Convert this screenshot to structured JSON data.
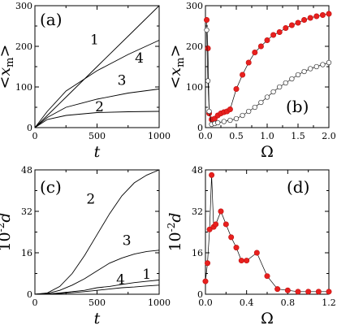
{
  "chart_data": [
    {
      "id": "a",
      "type": "line",
      "panel_label": "(a)",
      "xlabel": "t",
      "ylabel_html": "<x_m>",
      "xlim": [
        0,
        1000
      ],
      "ylim": [
        0,
        300
      ],
      "xticks": [
        0,
        500,
        1000
      ],
      "yticks": [
        0,
        100,
        200,
        300
      ],
      "series": [
        {
          "name": "1",
          "x": [
            0,
            100,
            250,
            500,
            750,
            1000
          ],
          "y": [
            0,
            30,
            75,
            150,
            225,
            300
          ],
          "label_at": [
            480,
            205
          ]
        },
        {
          "name": "4",
          "x": [
            0,
            100,
            250,
            500,
            750,
            1000
          ],
          "y": [
            0,
            40,
            90,
            140,
            180,
            215
          ],
          "label_at": [
            840,
            160
          ]
        },
        {
          "name": "3",
          "x": [
            0,
            100,
            250,
            500,
            750,
            1000
          ],
          "y": [
            0,
            25,
            50,
            70,
            85,
            95
          ],
          "label_at": [
            700,
            105
          ]
        },
        {
          "name": "2",
          "x": [
            0,
            100,
            250,
            500,
            750,
            1000
          ],
          "y": [
            0,
            20,
            30,
            37,
            39,
            40
          ],
          "label_at": [
            520,
            40
          ]
        }
      ]
    },
    {
      "id": "b",
      "type": "scatter",
      "panel_label": "(b)",
      "xlabel": "Ω",
      "ylabel_html": "<x_m>",
      "xlim": [
        0,
        2
      ],
      "ylim": [
        0,
        300
      ],
      "xticks": [
        0.0,
        0.5,
        1.0,
        1.5,
        2.0
      ],
      "yticks": [
        0,
        100,
        200,
        300
      ],
      "series": [
        {
          "name": "filled",
          "marker": "filled",
          "x": [
            0.02,
            0.04,
            0.06,
            0.1,
            0.15,
            0.2,
            0.25,
            0.3,
            0.35,
            0.4,
            0.5,
            0.6,
            0.7,
            0.8,
            0.9,
            1.0,
            1.1,
            1.2,
            1.3,
            1.4,
            1.5,
            1.6,
            1.7,
            1.8,
            1.9,
            2.0
          ],
          "y": [
            265,
            195,
            35,
            20,
            22,
            30,
            35,
            38,
            40,
            45,
            95,
            130,
            160,
            185,
            200,
            215,
            228,
            235,
            245,
            252,
            258,
            265,
            270,
            274,
            277,
            280
          ]
        },
        {
          "name": "open",
          "marker": "open",
          "x": [
            0.02,
            0.04,
            0.06,
            0.1,
            0.15,
            0.2,
            0.3,
            0.4,
            0.5,
            0.6,
            0.7,
            0.8,
            0.9,
            1.0,
            1.1,
            1.2,
            1.3,
            1.4,
            1.5,
            1.6,
            1.7,
            1.8,
            1.9,
            2.0
          ],
          "y": [
            240,
            115,
            40,
            8,
            10,
            12,
            15,
            18,
            22,
            30,
            40,
            50,
            62,
            75,
            88,
            100,
            110,
            120,
            130,
            138,
            145,
            150,
            155,
            160
          ]
        }
      ]
    },
    {
      "id": "c",
      "type": "line",
      "panel_label": "(c)",
      "xlabel": "t",
      "ylabel_prefix": "10",
      "ylabel_sup": "-2",
      "ylabel_var": "d",
      "xlim": [
        0,
        1000
      ],
      "ylim": [
        0,
        48
      ],
      "xticks": [
        0,
        500,
        1000
      ],
      "yticks": [
        0,
        16,
        32,
        48
      ],
      "series": [
        {
          "name": "2",
          "x": [
            0,
            100,
            200,
            300,
            400,
            500,
            600,
            700,
            800,
            900,
            1000
          ],
          "y": [
            0,
            0.5,
            3,
            8,
            15,
            23,
            31,
            38,
            43,
            46,
            48
          ],
          "label_at": [
            450,
            35
          ]
        },
        {
          "name": "3",
          "x": [
            0,
            100,
            200,
            300,
            400,
            500,
            600,
            700,
            800,
            900,
            1000
          ],
          "y": [
            0,
            0.3,
            1.5,
            3.5,
            6,
            9,
            12,
            14,
            15.5,
            16.5,
            17
          ],
          "label_at": [
            740,
            19
          ]
        },
        {
          "name": "1",
          "x": [
            0,
            100,
            200,
            300,
            400,
            500,
            600,
            700,
            800,
            900,
            1000
          ],
          "y": [
            0,
            0.1,
            0.5,
            1,
            1.5,
            2.5,
            3,
            3.8,
            4.5,
            5,
            5.5
          ],
          "label_at": [
            900,
            6
          ]
        },
        {
          "name": "4",
          "x": [
            0,
            100,
            200,
            300,
            400,
            500,
            600,
            700,
            800,
            900,
            1000
          ],
          "y": [
            0,
            0.1,
            0.3,
            0.6,
            1,
            1.5,
            2,
            2.5,
            2.8,
            3.2,
            3.5
          ],
          "label_at": [
            690,
            4
          ]
        }
      ]
    },
    {
      "id": "d",
      "type": "scatter",
      "panel_label": "(d)",
      "xlabel": "Ω",
      "ylabel_prefix": "10",
      "ylabel_sup": "-2",
      "ylabel_var": "d",
      "xlim": [
        0,
        1.2
      ],
      "ylim": [
        0,
        48
      ],
      "xticks": [
        0.0,
        0.4,
        0.8,
        1.2
      ],
      "yticks": [
        0,
        16,
        32,
        48
      ],
      "series": [
        {
          "name": "filled",
          "marker": "filled",
          "x": [
            0.0,
            0.02,
            0.04,
            0.06,
            0.08,
            0.1,
            0.15,
            0.2,
            0.25,
            0.3,
            0.35,
            0.4,
            0.5,
            0.6,
            0.7,
            0.8,
            0.9,
            1.0,
            1.1,
            1.2
          ],
          "y": [
            5,
            12,
            25,
            46,
            26,
            27,
            32,
            27,
            22,
            18,
            13,
            13,
            16,
            7,
            2,
            1.5,
            1,
            1,
            1,
            1
          ]
        }
      ]
    }
  ]
}
